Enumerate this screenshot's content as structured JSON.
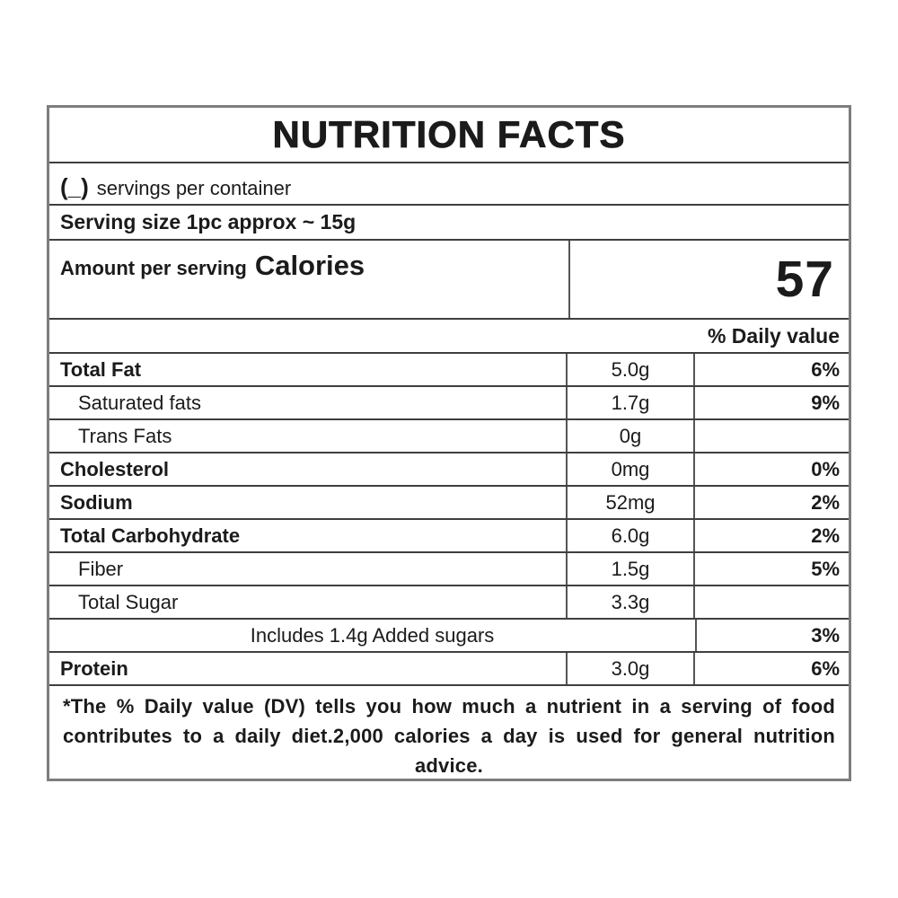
{
  "label": {
    "title": "NUTRITION FACTS",
    "servings_prefix": "(_)",
    "servings_text": "servings per container",
    "serving_size": "Serving size 1pc approx ~ 15g",
    "amount_per_serving": "Amount per serving",
    "calories_label": "Calories",
    "calories_value": "57",
    "daily_value_header": "% Daily value",
    "rows": [
      {
        "name": "Total Fat",
        "amount": "5.0g",
        "dv": "6%"
      },
      {
        "name": "Saturated fats",
        "amount": "1.7g",
        "dv": "9%"
      },
      {
        "name": "Trans Fats",
        "amount": "0g",
        "dv": ""
      },
      {
        "name": "Cholesterol",
        "amount": "0mg",
        "dv": "0%"
      },
      {
        "name": "Sodium",
        "amount": "52mg",
        "dv": "2%"
      },
      {
        "name": "Total Carbohydrate",
        "amount": "6.0g",
        "dv": "2%"
      },
      {
        "name": "Fiber",
        "amount": "1.5g",
        "dv": "5%"
      },
      {
        "name": "Total Sugar",
        "amount": "3.3g",
        "dv": ""
      },
      {
        "name": "Includes 1.4g Added sugars",
        "amount": "",
        "dv": "3%"
      },
      {
        "name": "Protein",
        "amount": "3.0g",
        "dv": "6%"
      }
    ],
    "footnote": "*The % Daily value (DV) tells you how much a nutrient in a serving of food contributes to a daily diet.2,000 calories a day is used for general nutrition advice."
  },
  "colors": {
    "text": "#1b1b1b",
    "border_outer": "#7d7d7d",
    "border_inner": "#3f3f3f"
  }
}
